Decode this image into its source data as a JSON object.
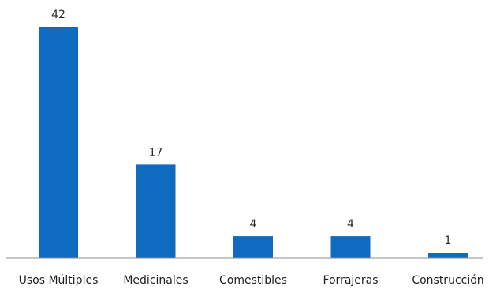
{
  "chart_data": {
    "type": "bar",
    "categories": [
      "Usos Múltiples",
      "Medicinales",
      "Comestibles",
      "Forrajeras",
      "Construcción"
    ],
    "values": [
      42,
      17,
      4,
      4,
      1
    ],
    "title": "",
    "xlabel": "",
    "ylabel": "",
    "ylim": [
      0,
      42
    ],
    "grid": false,
    "legend": "none",
    "bar_color": "#0f6bbf"
  }
}
